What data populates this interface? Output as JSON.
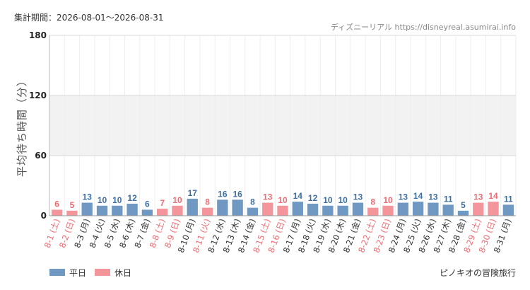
{
  "header": {
    "period": "集計期間：2026-08-01〜2026-08-31",
    "source": "ディズニーリアル https://disneyreal.asumirai.info"
  },
  "footer": {
    "attraction": "ピノキオの冒険旅行"
  },
  "colors": {
    "weekday": "#6f98c3",
    "holiday": "#f4959c",
    "weekday_text": "#3e6fa3",
    "holiday_text": "#ee6b73",
    "xtick_weekday": "#333333",
    "xtick_holiday": "#ee6b73"
  },
  "chart_data": {
    "type": "bar",
    "ylabel": "平均待ち時間（分）",
    "ylim": [
      0,
      180
    ],
    "yticks": [
      0,
      60,
      120,
      180
    ],
    "grid": true,
    "shaded_band": [
      60,
      120
    ],
    "legend": {
      "placement": "bottom-left",
      "entries": [
        {
          "name": "平日",
          "key": "weekday"
        },
        {
          "name": "休日",
          "key": "holiday"
        }
      ]
    },
    "categories": [
      "8-1 (土)",
      "8-2 (日)",
      "8-3 (月)",
      "8-4 (火)",
      "8-5 (水)",
      "8-6 (木)",
      "8-7 (金)",
      "8-8 (土)",
      "8-9 (日)",
      "8-10 (月)",
      "8-11 (火)",
      "8-12 (水)",
      "8-13 (木)",
      "8-14 (金)",
      "8-15 (土)",
      "8-16 (日)",
      "8-17 (月)",
      "8-18 (火)",
      "8-19 (水)",
      "8-20 (木)",
      "8-21 (金)",
      "8-22 (土)",
      "8-23 (日)",
      "8-24 (月)",
      "8-25 (火)",
      "8-26 (水)",
      "8-27 (木)",
      "8-28 (金)",
      "8-29 (土)",
      "8-30 (日)",
      "8-31 (月)"
    ],
    "values": [
      6,
      5,
      13,
      10,
      10,
      12,
      6,
      7,
      10,
      17,
      8,
      16,
      16,
      8,
      13,
      10,
      14,
      12,
      10,
      10,
      13,
      8,
      10,
      13,
      14,
      13,
      11,
      5,
      13,
      14,
      11
    ],
    "day_type": [
      "holiday",
      "holiday",
      "weekday",
      "weekday",
      "weekday",
      "weekday",
      "weekday",
      "holiday",
      "holiday",
      "weekday",
      "holiday",
      "weekday",
      "weekday",
      "weekday",
      "holiday",
      "holiday",
      "weekday",
      "weekday",
      "weekday",
      "weekday",
      "weekday",
      "holiday",
      "holiday",
      "weekday",
      "weekday",
      "weekday",
      "weekday",
      "weekday",
      "holiday",
      "holiday",
      "weekday"
    ]
  }
}
